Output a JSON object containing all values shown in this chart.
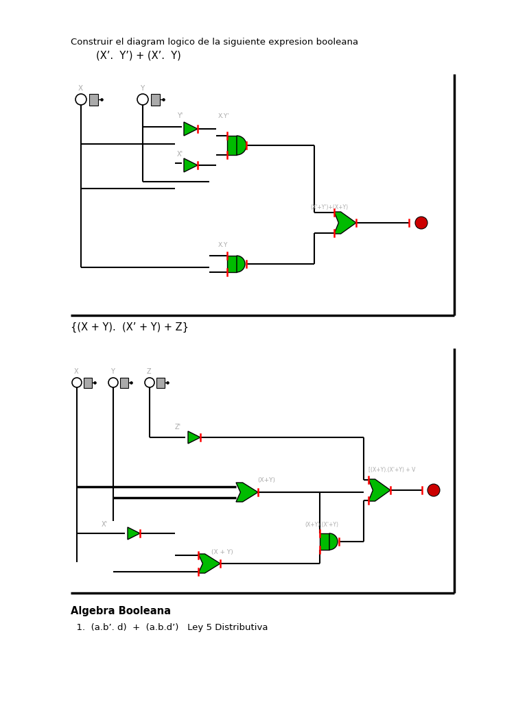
{
  "title": "Construir el diagram logico de la siguiente expresion booleana",
  "expr1": "        (X’.  Y’) + (X’.  Y)",
  "expr2": "{(X + Y).  (X’ + Y) + Z}",
  "algebra_title": "Algebra Booleana",
  "algebra_item": "  1.  (a.b’. d)  +  (a.b.d’)   Ley 5 Distributiva",
  "bg": "#ffffff",
  "gc": "#00bb00",
  "rc": "#cc0000",
  "gray": "#aaaaaa",
  "lc": "#000000"
}
